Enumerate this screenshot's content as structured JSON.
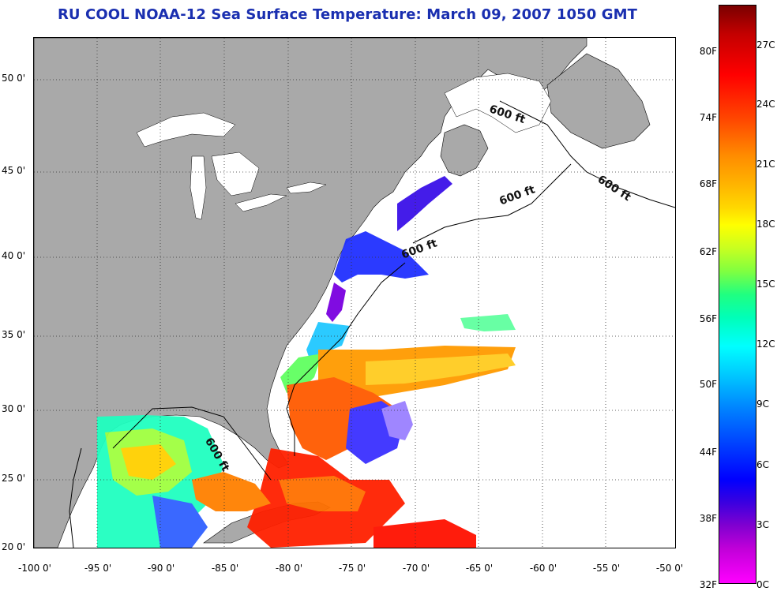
{
  "title": "RU COOL  NOAA-12  Sea Surface Temperature:  March 09, 2007 1050 GMT",
  "x_ticks": [
    "-100 0'",
    "-95 0'",
    "-90 0'",
    "-85 0'",
    "-80 0'",
    "-75 0'",
    "-70 0'",
    "-65 0'",
    "-60 0'",
    "-55 0'",
    "-50 0'"
  ],
  "y_ticks": [
    "50 0'",
    "45 0'",
    "40 0'",
    "35 0'",
    "30 0'",
    "25 0'",
    "20 0'"
  ],
  "colorbar": {
    "fahrenheit": [
      "80F",
      "74F",
      "68F",
      "62F",
      "56F",
      "50F",
      "44F",
      "38F",
      "32F"
    ],
    "celsius": [
      "27C",
      "24C",
      "21C",
      "18C",
      "15C",
      "12C",
      "9C",
      "6C",
      "3C",
      "0C"
    ]
  },
  "isobath_labels": [
    "600 ft",
    "600 ft",
    "600 ft",
    "600 ft",
    "600 ft"
  ],
  "colors": {
    "land": "#a9a9a9",
    "title": "#1a2fb0",
    "grid": "#333333"
  }
}
